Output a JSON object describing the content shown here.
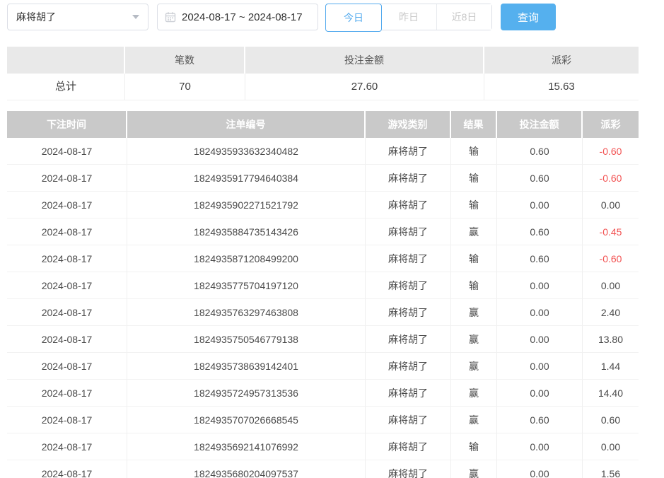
{
  "toolbar": {
    "game_select": {
      "value": "麻将胡了"
    },
    "date_range": {
      "value": "2024-08-17 ~ 2024-08-17"
    },
    "quick_buttons": [
      {
        "label": "今日",
        "active": true
      },
      {
        "label": "昨日",
        "active": false
      },
      {
        "label": "近8日",
        "active": false
      }
    ],
    "query_label": "查询"
  },
  "summary": {
    "headers": [
      "",
      "笔数",
      "投注金额",
      "派彩"
    ],
    "total": {
      "label": "总计",
      "count": "70",
      "bet_amount": "27.60",
      "payout": "15.63"
    }
  },
  "table": {
    "headers": [
      "下注时间",
      "注单编号",
      "游戏类别",
      "结果",
      "投注金额",
      "派彩"
    ],
    "rows": [
      [
        "2024-08-17",
        "1824935933632340482",
        "麻将胡了",
        "输",
        "0.60",
        "-0.60"
      ],
      [
        "2024-08-17",
        "1824935917794640384",
        "麻将胡了",
        "输",
        "0.60",
        "-0.60"
      ],
      [
        "2024-08-17",
        "1824935902271521792",
        "麻将胡了",
        "输",
        "0.00",
        "0.00"
      ],
      [
        "2024-08-17",
        "1824935884735143426",
        "麻将胡了",
        "赢",
        "0.60",
        "-0.45"
      ],
      [
        "2024-08-17",
        "1824935871208499200",
        "麻将胡了",
        "输",
        "0.60",
        "-0.60"
      ],
      [
        "2024-08-17",
        "1824935775704197120",
        "麻将胡了",
        "输",
        "0.00",
        "0.00"
      ],
      [
        "2024-08-17",
        "1824935763297463808",
        "麻将胡了",
        "赢",
        "0.00",
        "2.40"
      ],
      [
        "2024-08-17",
        "1824935750546779138",
        "麻将胡了",
        "赢",
        "0.00",
        "13.80"
      ],
      [
        "2024-08-17",
        "1824935738639142401",
        "麻将胡了",
        "赢",
        "0.00",
        "1.44"
      ],
      [
        "2024-08-17",
        "1824935724957313536",
        "麻将胡了",
        "赢",
        "0.00",
        "14.40"
      ],
      [
        "2024-08-17",
        "1824935707026668545",
        "麻将胡了",
        "赢",
        "0.60",
        "0.60"
      ],
      [
        "2024-08-17",
        "1824935692141076992",
        "麻将胡了",
        "输",
        "0.00",
        "0.00"
      ],
      [
        "2024-08-17",
        "1824935680204097537",
        "麻将胡了",
        "赢",
        "0.00",
        "1.56"
      ]
    ],
    "cell_names": [
      "cell-bet-time",
      "cell-bet-id",
      "cell-game-type",
      "cell-result",
      "cell-bet-amount",
      "cell-payout"
    ]
  },
  "colors": {
    "accent_blue": "#55abee",
    "negative_red": "#f25252",
    "table_header_bg": "#c9c9c9",
    "summary_header_bg": "#e9e9e9"
  }
}
